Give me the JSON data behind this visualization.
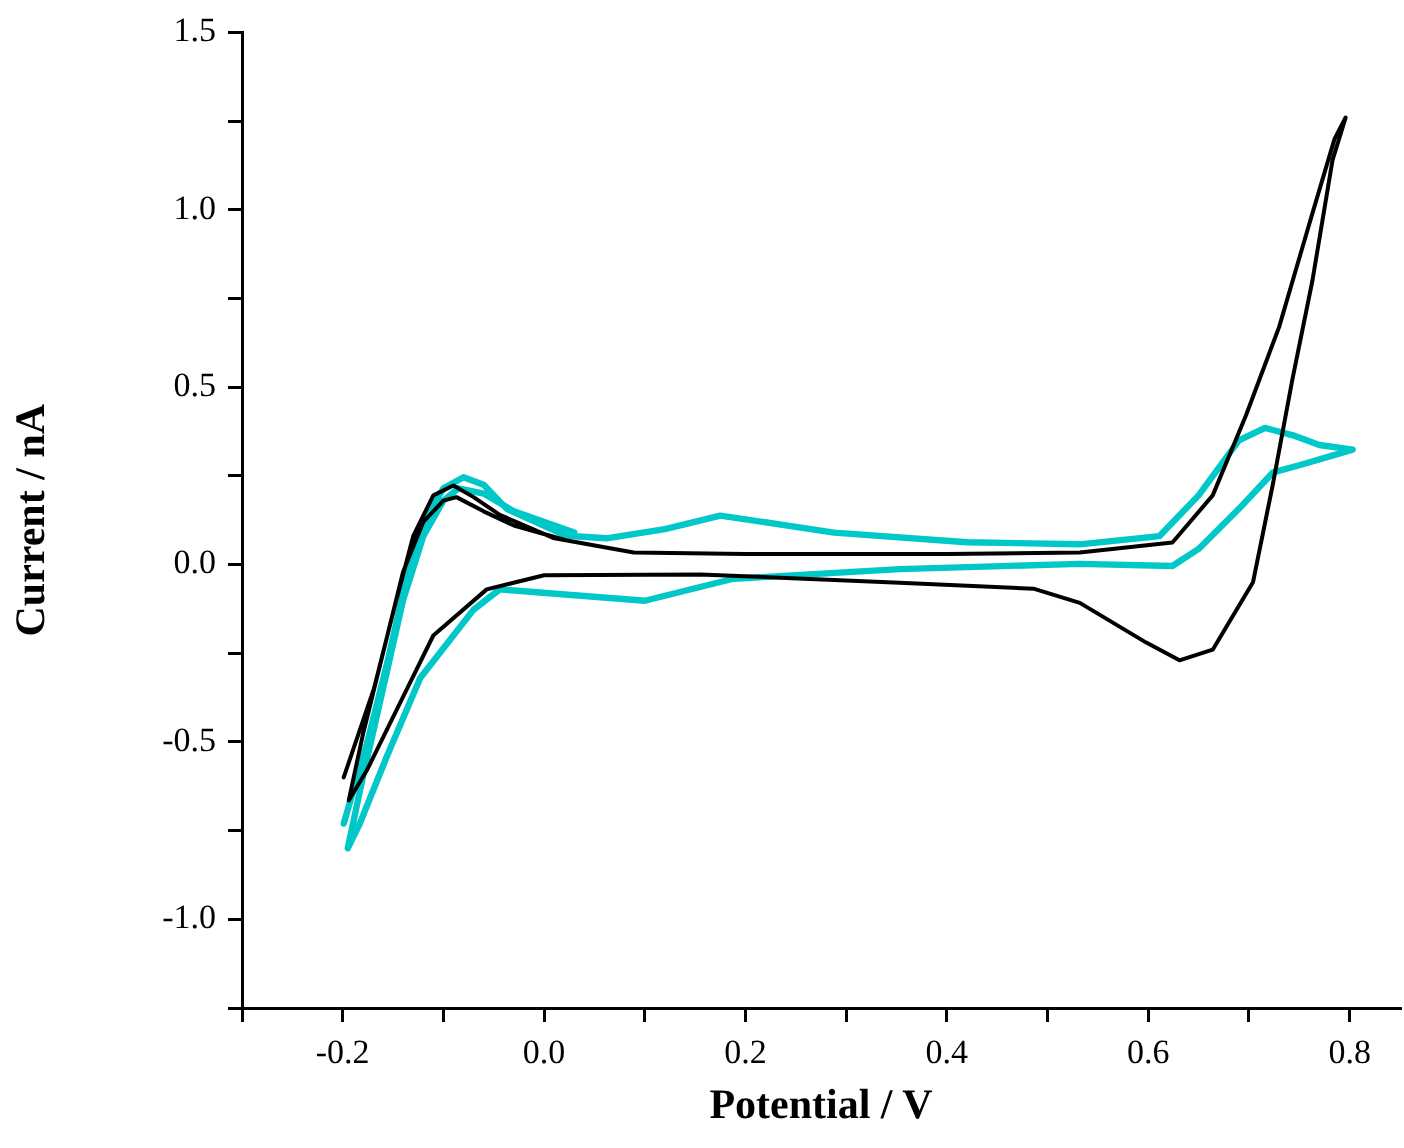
{
  "chart_data": {
    "type": "line",
    "xlabel": "Potential / V",
    "ylabel": "Current / nA",
    "xlim": [
      -0.3,
      0.85
    ],
    "ylim": [
      -1.25,
      1.5
    ],
    "xticks": [
      {
        "value": -0.3,
        "label": null
      },
      -0.2,
      {
        "value": -0.1,
        "label": null
      },
      {
        "value": 0,
        "label": "0.0"
      },
      {
        "value": 0.1,
        "label": null
      },
      0.2,
      {
        "value": 0.3,
        "label": null
      },
      0.4,
      {
        "value": 0.5,
        "label": null
      },
      0.6,
      {
        "value": 0.7,
        "label": null
      },
      0.8
    ],
    "yticks": [
      {
        "value": -1.25,
        "label": null
      },
      {
        "value": -1,
        "label": "-1.0"
      },
      {
        "value": -0.75,
        "label": null
      },
      -0.5,
      {
        "value": -0.25,
        "label": null
      },
      {
        "value": 0,
        "label": "0.0"
      },
      {
        "value": 0.25,
        "label": null
      },
      0.5,
      {
        "value": 0.75,
        "label": null
      },
      {
        "value": 1,
        "label": "1.0"
      },
      {
        "value": 1.25,
        "label": null
      },
      1.5
    ],
    "grid": false,
    "legend": false,
    "marker": "none",
    "line_style": "solid",
    "series": [
      {
        "color": "#000000",
        "x": [
          -0.199,
          -0.169,
          -0.149,
          -0.13,
          -0.11,
          -0.09,
          -0.07,
          -0.044,
          0.009,
          0.089,
          0.2,
          0.4,
          0.532,
          0.624,
          0.664,
          0.697,
          0.73,
          0.763,
          0.785,
          0.796,
          0.783,
          0.763,
          0.743,
          0.724,
          0.704,
          0.664,
          0.631,
          0.598,
          0.532,
          0.486,
          0.353,
          0.155,
          0,
          -0.057,
          -0.11,
          -0.143,
          -0.176,
          -0.194,
          -0.18,
          -0.16,
          -0.14,
          -0.12,
          -0.1,
          -0.087,
          -0.06,
          -0.03,
          0.02
        ],
        "values": [
          -0.6,
          -0.35,
          -0.125,
          0.08,
          0.195,
          0.223,
          0.19,
          0.14,
          0.075,
          0.034,
          0.03,
          0.03,
          0.034,
          0.062,
          0.195,
          0.42,
          0.67,
          0.99,
          1.2,
          1.26,
          1.14,
          0.8,
          0.52,
          0.23,
          -0.05,
          -0.24,
          -0.27,
          -0.22,
          -0.108,
          -0.068,
          -0.051,
          -0.028,
          -0.03,
          -0.07,
          -0.2,
          -0.39,
          -0.58,
          -0.665,
          -0.48,
          -0.25,
          -0.02,
          0.12,
          0.18,
          0.19,
          0.15,
          0.11,
          0.07
        ]
      },
      {
        "color": "#00c8c8",
        "x": [
          -0.199,
          -0.176,
          -0.156,
          -0.136,
          -0.116,
          -0.1,
          -0.08,
          -0.06,
          -0.037,
          0.022,
          0.062,
          0.12,
          0.175,
          0.288,
          0.42,
          0.532,
          0.611,
          0.65,
          0.69,
          0.716,
          0.743,
          0.77,
          0.803,
          0.75,
          0.724,
          0.69,
          0.65,
          0.624,
          0.532,
          0.353,
          0.188,
          0.1,
          -0.044,
          -0.07,
          -0.123,
          -0.156,
          -0.183,
          -0.195,
          -0.18,
          -0.16,
          -0.14,
          -0.12,
          -0.1,
          -0.085,
          -0.06,
          -0.03,
          0.03
        ],
        "values": [
          -0.73,
          -0.506,
          -0.28,
          -0.03,
          0.138,
          0.215,
          0.246,
          0.225,
          0.157,
          0.081,
          0.074,
          0.1,
          0.138,
          0.09,
          0.063,
          0.057,
          0.08,
          0.195,
          0.35,
          0.385,
          0.365,
          0.337,
          0.324,
          0.28,
          0.26,
          0.157,
          0.044,
          -0.004,
          0.002,
          -0.013,
          -0.04,
          -0.102,
          -0.07,
          -0.127,
          -0.32,
          -0.54,
          -0.73,
          -0.8,
          -0.6,
          -0.35,
          -0.1,
          0.08,
          0.18,
          0.215,
          0.2,
          0.15,
          0.09
        ]
      }
    ]
  }
}
